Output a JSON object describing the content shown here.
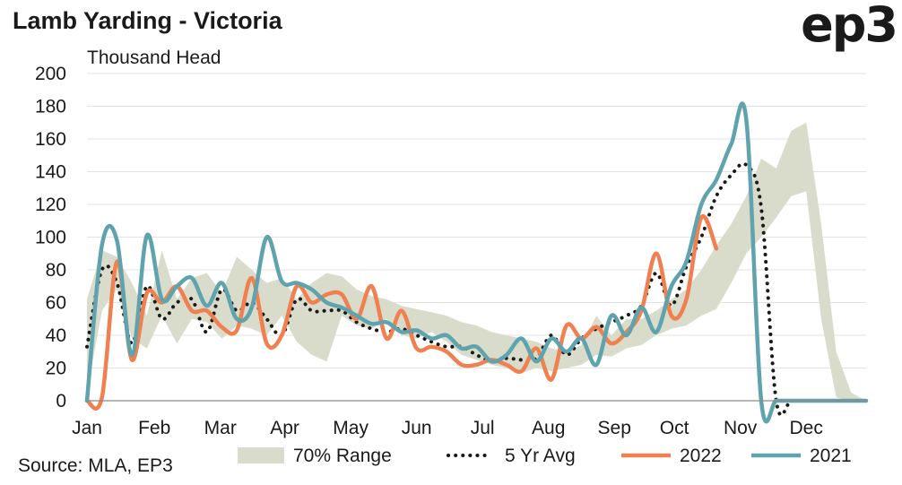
{
  "header": {
    "title": "Lamb Yarding - Victoria",
    "logo_text": "ep3"
  },
  "footer": {
    "source": "Source: MLA, EP3"
  },
  "chart_data": {
    "type": "line",
    "title": "Lamb Yarding - Victoria",
    "ylabel": "Thousand Head",
    "ylim": [
      0,
      200
    ],
    "yticks": [
      0,
      20,
      40,
      60,
      80,
      100,
      120,
      140,
      160,
      180,
      200
    ],
    "xlim": [
      1,
      53
    ],
    "month_labels": [
      "Jan",
      "Feb",
      "Mar",
      "Apr",
      "May",
      "Jun",
      "Jul",
      "Aug",
      "Sep",
      "Oct",
      "Nov",
      "Dec"
    ],
    "month_weeks": [
      1,
      5.5,
      9.9,
      14.2,
      18.6,
      23,
      27.4,
      31.8,
      36.2,
      40.2,
      44.6,
      49
    ],
    "grid": true,
    "legend_position": "bottom",
    "colors": {
      "range": "#d9dccb",
      "avg": "#1a1a1a",
      "y2022": "#f08050",
      "y2021": "#5ea3ad"
    },
    "series": [
      {
        "name": "70% Range",
        "kind": "band",
        "x": [
          1,
          2,
          3,
          4,
          5,
          6,
          7,
          8,
          9,
          10,
          11,
          12,
          13,
          14,
          15,
          16,
          17,
          18,
          19,
          20,
          21,
          22,
          23,
          24,
          25,
          26,
          27,
          28,
          29,
          30,
          31,
          32,
          33,
          34,
          35,
          36,
          37,
          38,
          39,
          40,
          41,
          42,
          43,
          44,
          45,
          46,
          47,
          48,
          49,
          50,
          51,
          52,
          53
        ],
        "low": [
          5,
          55,
          68,
          38,
          32,
          52,
          35,
          50,
          48,
          38,
          46,
          44,
          40,
          52,
          36,
          28,
          24,
          52,
          46,
          44,
          50,
          40,
          38,
          42,
          36,
          28,
          25,
          22,
          20,
          17,
          20,
          18,
          20,
          22,
          28,
          27,
          32,
          34,
          40,
          44,
          46,
          52,
          56,
          72,
          90,
          100,
          112,
          125,
          128,
          50,
          2,
          0,
          0
        ],
        "high": [
          62,
          92,
          88,
          72,
          52,
          92,
          62,
          75,
          78,
          66,
          88,
          80,
          72,
          75,
          62,
          72,
          78,
          76,
          68,
          64,
          62,
          58,
          56,
          54,
          52,
          48,
          46,
          42,
          40,
          38,
          36,
          32,
          30,
          34,
          52,
          40,
          50,
          50,
          55,
          62,
          68,
          80,
          95,
          108,
          125,
          148,
          142,
          165,
          170,
          108,
          30,
          5,
          0
        ]
      },
      {
        "name": "5 Yr Avg",
        "kind": "line",
        "x": [
          1,
          2,
          3,
          4,
          5,
          6,
          7,
          8,
          9,
          10,
          11,
          12,
          13,
          14,
          15,
          16,
          17,
          18,
          19,
          20,
          21,
          22,
          23,
          24,
          25,
          26,
          27,
          28,
          29,
          30,
          31,
          32,
          33,
          34,
          35,
          36,
          37,
          38,
          39,
          40,
          41,
          42,
          43,
          44,
          45,
          46,
          47,
          48,
          49,
          50,
          51,
          52,
          53
        ],
        "values": [
          33,
          80,
          72,
          35,
          70,
          50,
          60,
          62,
          42,
          68,
          55,
          60,
          50,
          40,
          62,
          55,
          55,
          55,
          48,
          44,
          42,
          44,
          40,
          36,
          33,
          33,
          28,
          24,
          26,
          25,
          26,
          40,
          28,
          38,
          44,
          48,
          52,
          58,
          78,
          58,
          82,
          100,
          125,
          138,
          144,
          118,
          0,
          0,
          0,
          0,
          0,
          0,
          0
        ]
      },
      {
        "name": "2022",
        "kind": "line",
        "x": [
          1,
          2,
          3,
          4,
          5,
          6,
          7,
          8,
          9,
          10,
          11,
          12,
          13,
          14,
          15,
          16,
          17,
          18,
          19,
          20,
          21,
          22,
          23,
          24,
          25,
          26,
          27,
          28,
          29,
          30,
          31,
          32,
          33,
          34,
          35,
          36,
          37,
          38,
          39,
          40,
          41,
          42,
          43,
          44,
          45,
          46,
          47,
          48,
          49
        ],
        "values": [
          0,
          2,
          85,
          25,
          66,
          60,
          70,
          55,
          55,
          45,
          43,
          75,
          35,
          40,
          70,
          60,
          65,
          65,
          50,
          70,
          38,
          55,
          32,
          33,
          30,
          22,
          22,
          25,
          22,
          18,
          32,
          13,
          46,
          38,
          45,
          35,
          42,
          55,
          90,
          52,
          62,
          112,
          93,
          null,
          null,
          null,
          null,
          null,
          null
        ]
      },
      {
        "name": "2021",
        "kind": "line",
        "x": [
          1,
          2,
          3,
          4,
          5,
          6,
          7,
          8,
          9,
          10,
          11,
          12,
          13,
          14,
          15,
          16,
          17,
          18,
          19,
          20,
          21,
          22,
          23,
          24,
          25,
          26,
          27,
          28,
          29,
          30,
          31,
          32,
          33,
          34,
          35,
          36,
          37,
          38,
          39,
          40,
          41,
          42,
          43,
          44,
          45,
          46,
          47,
          48,
          49,
          50,
          51,
          52,
          53
        ],
        "values": [
          0,
          95,
          98,
          28,
          101,
          62,
          70,
          75,
          58,
          72,
          50,
          57,
          100,
          73,
          72,
          68,
          60,
          57,
          52,
          47,
          48,
          42,
          43,
          38,
          40,
          32,
          33,
          24,
          28,
          38,
          24,
          38,
          30,
          38,
          22,
          52,
          40,
          57,
          42,
          70,
          85,
          120,
          135,
          157,
          172,
          0,
          0,
          0,
          0,
          0,
          0,
          0,
          0
        ]
      }
    ]
  }
}
